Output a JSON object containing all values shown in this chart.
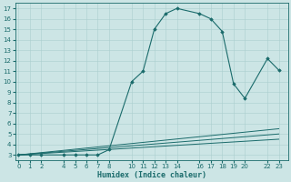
{
  "xlabel": "Humidex (Indice chaleur)",
  "bg_color": "#cce5e5",
  "line_color": "#1a6b6b",
  "grid_color": "#aacfcf",
  "xticks": [
    0,
    1,
    2,
    4,
    5,
    6,
    7,
    8,
    10,
    11,
    12,
    13,
    14,
    16,
    17,
    18,
    19,
    20,
    22,
    23
  ],
  "yticks": [
    3,
    4,
    5,
    6,
    7,
    8,
    9,
    10,
    11,
    12,
    13,
    14,
    15,
    16,
    17
  ],
  "xlim": [
    -0.3,
    23.8
  ],
  "ylim": [
    2.5,
    17.5
  ],
  "lines": [
    {
      "x": [
        0,
        1,
        2,
        4,
        5,
        6,
        7,
        8,
        10,
        11,
        12,
        13,
        14,
        16,
        17,
        18,
        19,
        20,
        22,
        23
      ],
      "y": [
        3,
        3,
        3,
        3,
        3,
        3,
        3,
        3.5,
        10,
        11,
        15,
        16.5,
        17,
        16.5,
        16,
        14.8,
        9.8,
        8.4,
        12.2,
        11.1
      ],
      "marker": "D",
      "markersize": 1.8,
      "linewidth": 0.8,
      "linestyle": "-"
    },
    {
      "x": [
        0,
        23
      ],
      "y": [
        3,
        5.5
      ],
      "marker": null,
      "linewidth": 0.7,
      "linestyle": "-"
    },
    {
      "x": [
        0,
        23
      ],
      "y": [
        3,
        5.0
      ],
      "marker": null,
      "linewidth": 0.7,
      "linestyle": "-"
    },
    {
      "x": [
        0,
        23
      ],
      "y": [
        3,
        4.5
      ],
      "marker": null,
      "linewidth": 0.7,
      "linestyle": "-"
    }
  ],
  "tick_labelsize": 5.0,
  "xlabel_fontsize": 6.0
}
